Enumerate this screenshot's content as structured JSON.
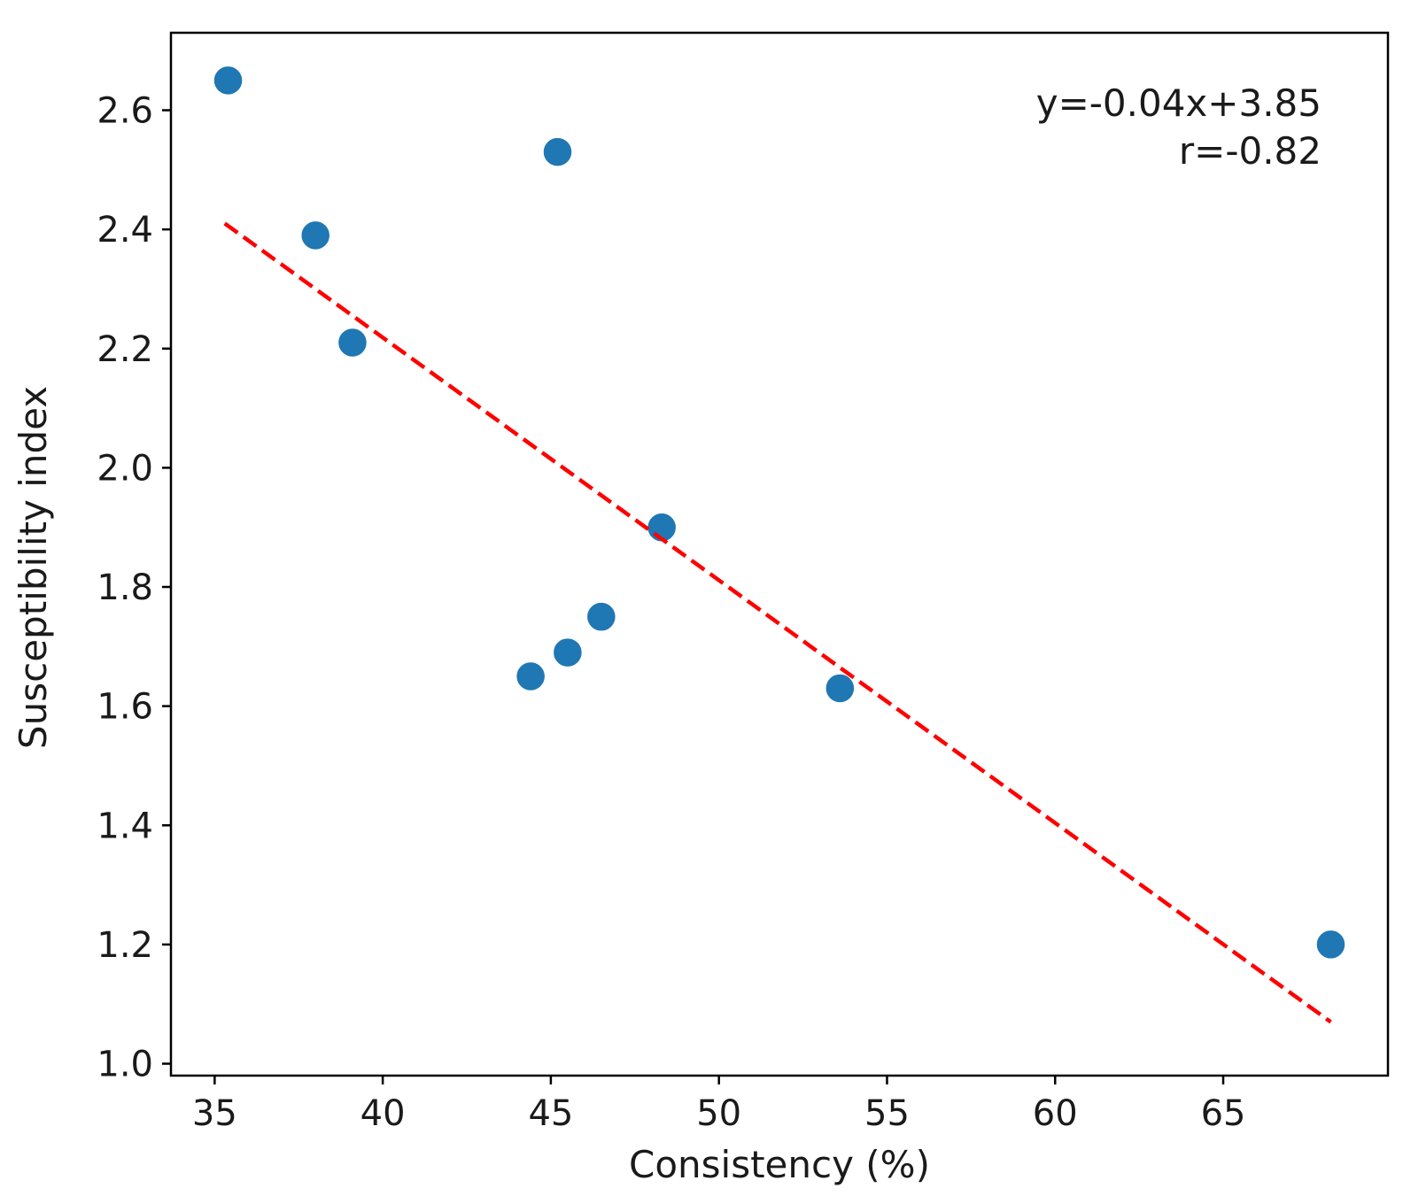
{
  "chart_data": {
    "type": "scatter",
    "title": "",
    "xlabel": "Consistency (%)",
    "ylabel": "Susceptibility index",
    "xlim": [
      33.7,
      69.9
    ],
    "ylim": [
      0.98,
      2.73
    ],
    "xticks": [
      35,
      40,
      45,
      50,
      55,
      60,
      65
    ],
    "yticks": [
      1.0,
      1.2,
      1.4,
      1.6,
      1.8,
      2.0,
      2.2,
      2.4,
      2.6
    ],
    "xtick_labels": [
      "35",
      "40",
      "45",
      "50",
      "55",
      "60",
      "65"
    ],
    "ytick_labels": [
      "1.0",
      "1.2",
      "1.4",
      "1.6",
      "1.8",
      "2.0",
      "2.2",
      "2.4",
      "2.6"
    ],
    "grid": false,
    "series": [
      {
        "name": "data",
        "color": "#1f77b4",
        "points": [
          {
            "x": 35.4,
            "y": 2.65
          },
          {
            "x": 38.0,
            "y": 2.39
          },
          {
            "x": 39.1,
            "y": 2.21
          },
          {
            "x": 44.4,
            "y": 1.65
          },
          {
            "x": 45.2,
            "y": 2.53
          },
          {
            "x": 45.5,
            "y": 1.69
          },
          {
            "x": 46.5,
            "y": 1.75
          },
          {
            "x": 48.3,
            "y": 1.9
          },
          {
            "x": 53.6,
            "y": 1.63
          },
          {
            "x": 68.2,
            "y": 1.2
          }
        ]
      }
    ],
    "fit_line": {
      "color": "#ff0000",
      "style": "dashed",
      "x_start": 35.3,
      "x_end": 68.2,
      "y_start": 2.41,
      "y_end": 1.07
    },
    "annotations": {
      "equation": "y=-0.04x+3.85",
      "correlation": "r=-0.82"
    }
  }
}
